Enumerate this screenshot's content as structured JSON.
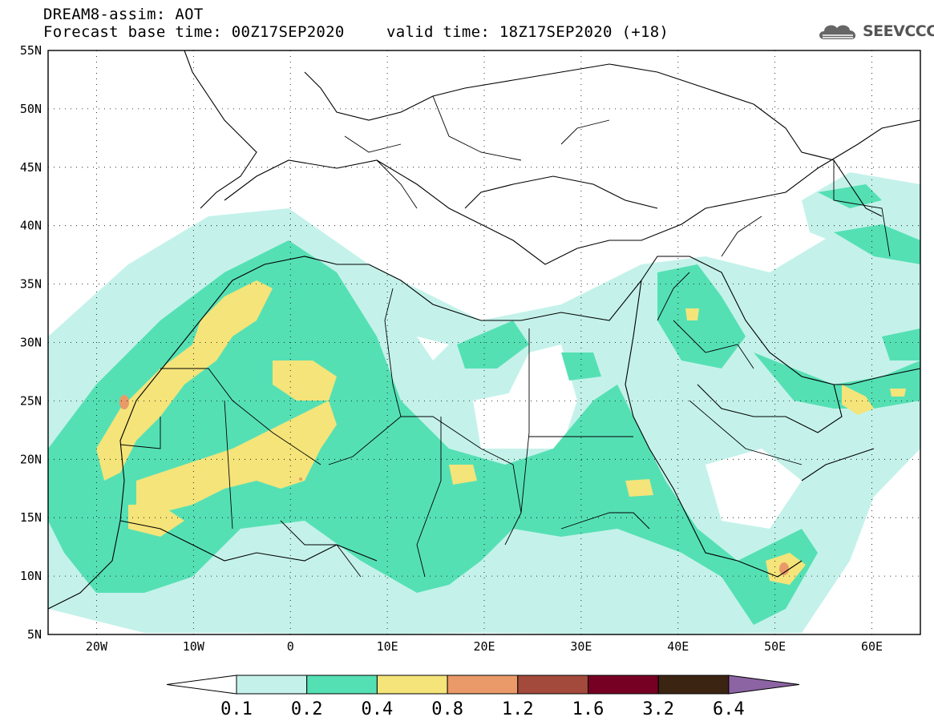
{
  "header": {
    "title": "DREAM8-assim: AOT",
    "base_time": "Forecast base time: 00Z17SEP2020",
    "valid_time": "valid time: 18Z17SEP2020 (+18)"
  },
  "logo": {
    "text": "SEEVCCC",
    "icon": "cloud-icon"
  },
  "map": {
    "lon_range": [
      -25,
      65
    ],
    "lat_range": [
      5,
      55
    ],
    "lon_labels": [
      "20W",
      "10W",
      "0",
      "10E",
      "20E",
      "30E",
      "40E",
      "50E",
      "60E"
    ],
    "lat_labels": [
      "55N",
      "50N",
      "45N",
      "40N",
      "35N",
      "30N",
      "25N",
      "20N",
      "15N",
      "10N",
      "5N"
    ]
  },
  "colorbar": {
    "labels": [
      "0.1",
      "0.2",
      "0.4",
      "0.8",
      "1.2",
      "1.6",
      "3.2",
      "6.4"
    ],
    "colors": [
      "#ffffff",
      "#c4f2ea",
      "#55e0b4",
      "#f4e47a",
      "#ea9a68",
      "#a34a3c",
      "#760024",
      "#3c2412",
      "#8c64a4"
    ]
  }
}
